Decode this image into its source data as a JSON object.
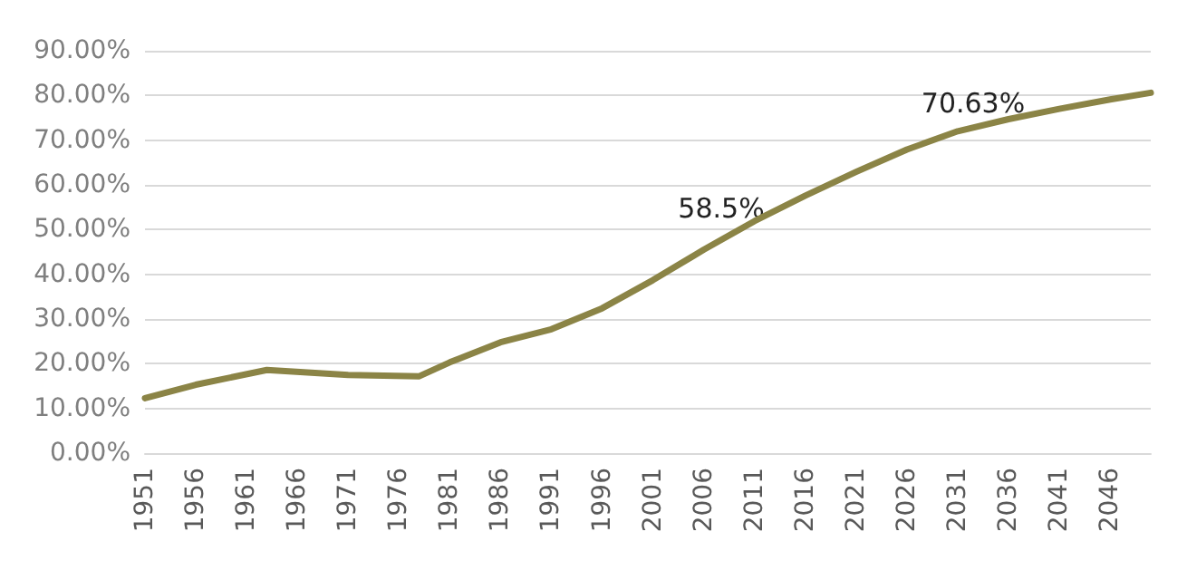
{
  "chart_data": {
    "type": "line",
    "x": [
      1951,
      1956,
      1963,
      1971,
      1978,
      1981,
      1986,
      1991,
      1996,
      2001,
      2006,
      2011,
      2016,
      2021,
      2026,
      2031,
      2036,
      2041,
      2046,
      2050
    ],
    "series": [
      {
        "color": "#8b8446",
        "values": [
          12.3,
          15.3,
          18.6,
          17.5,
          17.2,
          20.3,
          24.8,
          27.7,
          32.4,
          38.7,
          45.5,
          51.9,
          57.6,
          62.9,
          67.9,
          72.0,
          74.7,
          77.0,
          79.1,
          80.6
        ]
      }
    ],
    "xlim": [
      1951,
      2050
    ],
    "xticks": [
      1951,
      1956,
      1961,
      1966,
      1971,
      1976,
      1981,
      1986,
      1991,
      1996,
      2001,
      2006,
      2011,
      2016,
      2021,
      2026,
      2031,
      2036,
      2041,
      2046
    ],
    "ylim": [
      0,
      90
    ],
    "yticks": [
      {
        "value": 0,
        "label": "0.00%"
      },
      {
        "value": 10,
        "label": "10.00%"
      },
      {
        "value": 20,
        "label": "20.00%"
      },
      {
        "value": 30,
        "label": "30.00%"
      },
      {
        "value": 40,
        "label": "40.00%"
      },
      {
        "value": 50,
        "label": "50.00%"
      },
      {
        "value": 60,
        "label": "60.00%"
      },
      {
        "value": 70,
        "label": "70.00%"
      },
      {
        "value": 80,
        "label": "80.00%"
      },
      {
        "value": 90,
        "label": "90.00%"
      }
    ],
    "annotations": [
      "58.5%",
      "70.63%"
    ],
    "grid": "y",
    "marker": "none",
    "line_style": "solid"
  }
}
